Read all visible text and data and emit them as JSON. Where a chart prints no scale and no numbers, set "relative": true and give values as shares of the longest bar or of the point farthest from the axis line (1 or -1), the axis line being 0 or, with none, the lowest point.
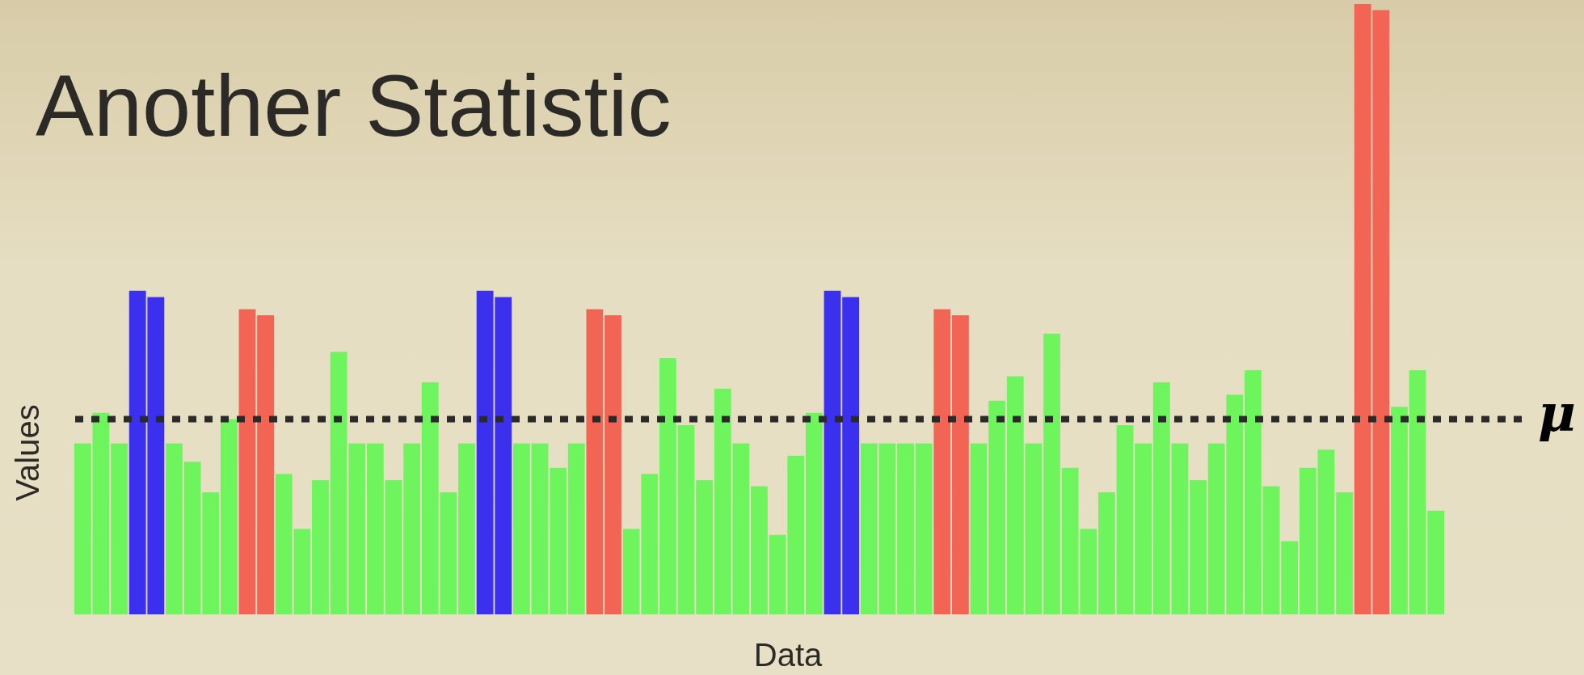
{
  "chart_data": {
    "type": "bar",
    "title": "Another Statistic",
    "xlabel": "Data",
    "ylabel": "Values",
    "relative": true,
    "categories": [
      null,
      null,
      null,
      null,
      null,
      null,
      null,
      null,
      null,
      null,
      null,
      null,
      null,
      null,
      null,
      null,
      null,
      null,
      null,
      null,
      null,
      null,
      null,
      null,
      null,
      null,
      null,
      null,
      null,
      null,
      null,
      null,
      null,
      null,
      null,
      null,
      null,
      null,
      null,
      null,
      null,
      null,
      null,
      null,
      null,
      null,
      null,
      null,
      null,
      null,
      null,
      null,
      null,
      null,
      null,
      null,
      null,
      null,
      null,
      null,
      null,
      null,
      null,
      null,
      null,
      null,
      null,
      null,
      null,
      null,
      null,
      null,
      null,
      null,
      null
    ],
    "values": [
      0.28,
      0.33,
      0.28,
      0.53,
      0.52,
      0.28,
      0.25,
      0.2,
      0.32,
      0.5,
      0.49,
      0.23,
      0.14,
      0.22,
      0.43,
      0.28,
      0.28,
      0.22,
      0.28,
      0.38,
      0.2,
      0.28,
      0.53,
      0.52,
      0.28,
      0.28,
      0.24,
      0.28,
      0.5,
      0.49,
      0.14,
      0.23,
      0.42,
      0.31,
      0.22,
      0.37,
      0.28,
      0.21,
      0.13,
      0.26,
      0.33,
      0.53,
      0.52,
      0.28,
      0.28,
      0.28,
      0.28,
      0.5,
      0.49,
      0.28,
      0.35,
      0.39,
      0.28,
      0.46,
      0.24,
      0.14,
      0.2,
      0.31,
      0.28,
      0.38,
      0.28,
      0.22,
      0.28,
      0.36,
      0.4,
      0.21,
      0.12,
      0.24,
      0.27,
      0.2,
      1,
      0.99,
      0.34,
      0.4,
      0.17
    ],
    "colors": [
      "#6ef55e",
      "#6ef55e",
      "#6ef55e",
      "#3a30ee",
      "#3a30ee",
      "#6ef55e",
      "#6ef55e",
      "#6ef55e",
      "#6ef55e",
      "#f26454",
      "#f26454",
      "#6ef55e",
      "#6ef55e",
      "#6ef55e",
      "#6ef55e",
      "#6ef55e",
      "#6ef55e",
      "#6ef55e",
      "#6ef55e",
      "#6ef55e",
      "#6ef55e",
      "#6ef55e",
      "#3a30ee",
      "#3a30ee",
      "#6ef55e",
      "#6ef55e",
      "#6ef55e",
      "#6ef55e",
      "#f26454",
      "#f26454",
      "#6ef55e",
      "#6ef55e",
      "#6ef55e",
      "#6ef55e",
      "#6ef55e",
      "#6ef55e",
      "#6ef55e",
      "#6ef55e",
      "#6ef55e",
      "#6ef55e",
      "#6ef55e",
      "#3a30ee",
      "#3a30ee",
      "#6ef55e",
      "#6ef55e",
      "#6ef55e",
      "#6ef55e",
      "#f26454",
      "#f26454",
      "#6ef55e",
      "#6ef55e",
      "#6ef55e",
      "#6ef55e",
      "#6ef55e",
      "#6ef55e",
      "#6ef55e",
      "#6ef55e",
      "#6ef55e",
      "#6ef55e",
      "#6ef55e",
      "#6ef55e",
      "#6ef55e",
      "#6ef55e",
      "#6ef55e",
      "#6ef55e",
      "#6ef55e",
      "#6ef55e",
      "#6ef55e",
      "#6ef55e",
      "#6ef55e",
      "#f26454",
      "#f26454",
      "#6ef55e",
      "#6ef55e",
      "#6ef55e"
    ],
    "ref_lines": [
      {
        "axis": "y",
        "value": 0.32,
        "label": "μ",
        "color": "#2a2a2a",
        "line_style": "dotted"
      }
    ]
  }
}
